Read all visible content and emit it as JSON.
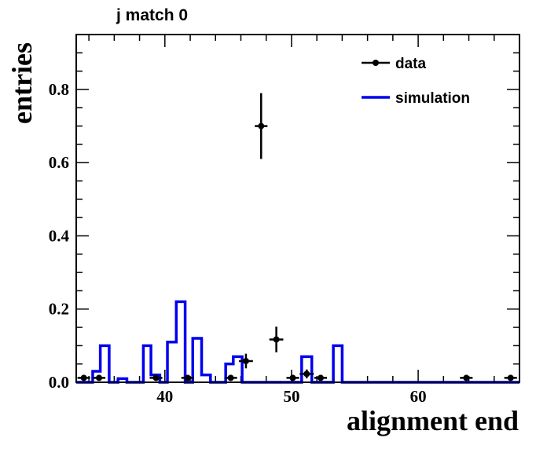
{
  "chart_data": {
    "type": "scatter",
    "title": "j match 0",
    "xlabel": "alignment end",
    "ylabel": "entries",
    "xlim": [
      33,
      68
    ],
    "ylim": [
      0,
      0.95
    ],
    "x_major_ticks": [
      40,
      50,
      60
    ],
    "y_major_ticks": [
      0,
      0.2,
      0.4,
      0.6,
      0.8
    ],
    "x_tick_labels": [
      "40",
      "50",
      "60"
    ],
    "y_tick_labels": [
      "0.0",
      "0.2",
      "0.4",
      "0.6",
      "0.8"
    ],
    "legend": [
      "data",
      "simulation"
    ],
    "legend_position": "top-right",
    "colors": {
      "data": "#000000",
      "simulation": "#0000ee",
      "axis": "#000000"
    },
    "series": [
      {
        "name": "data",
        "type": "errorbar",
        "x": [
          33.6,
          34.8,
          39.3,
          41.8,
          45.2,
          46.4,
          47.6,
          48.8,
          50.1,
          51.2,
          52.3,
          63.8,
          67.3
        ],
        "y": [
          0.012,
          0.012,
          0.012,
          0.012,
          0.012,
          0.058,
          0.7,
          0.117,
          0.012,
          0.023,
          0.012,
          0.012,
          0.012
        ],
        "yerr": [
          0,
          0,
          0,
          0,
          0,
          0.02,
          0.09,
          0.035,
          0,
          0.012,
          0,
          0,
          0
        ],
        "xerr": [
          0.5,
          0.5,
          0.5,
          0.5,
          0.5,
          0.55,
          0.5,
          0.55,
          0.5,
          0.55,
          0.5,
          0.5,
          0.5
        ]
      },
      {
        "name": "simulation",
        "type": "step",
        "bin_edges": [
          33,
          34.3,
          34.9,
          35.6,
          36.3,
          37,
          38.3,
          38.9,
          39.6,
          40.2,
          40.9,
          41.6,
          42.2,
          42.9,
          43.6,
          44.8,
          45.4,
          46.1,
          50.2,
          50.8,
          51.6,
          53.3,
          54.0,
          68
        ],
        "values": [
          0,
          0.03,
          0.1,
          0,
          0.01,
          0,
          0.1,
          0.02,
          0,
          0.11,
          0.22,
          0,
          0.12,
          0.02,
          0,
          0.05,
          0.07,
          0,
          0,
          0.07,
          0,
          0.1,
          0,
          0
        ]
      }
    ]
  }
}
